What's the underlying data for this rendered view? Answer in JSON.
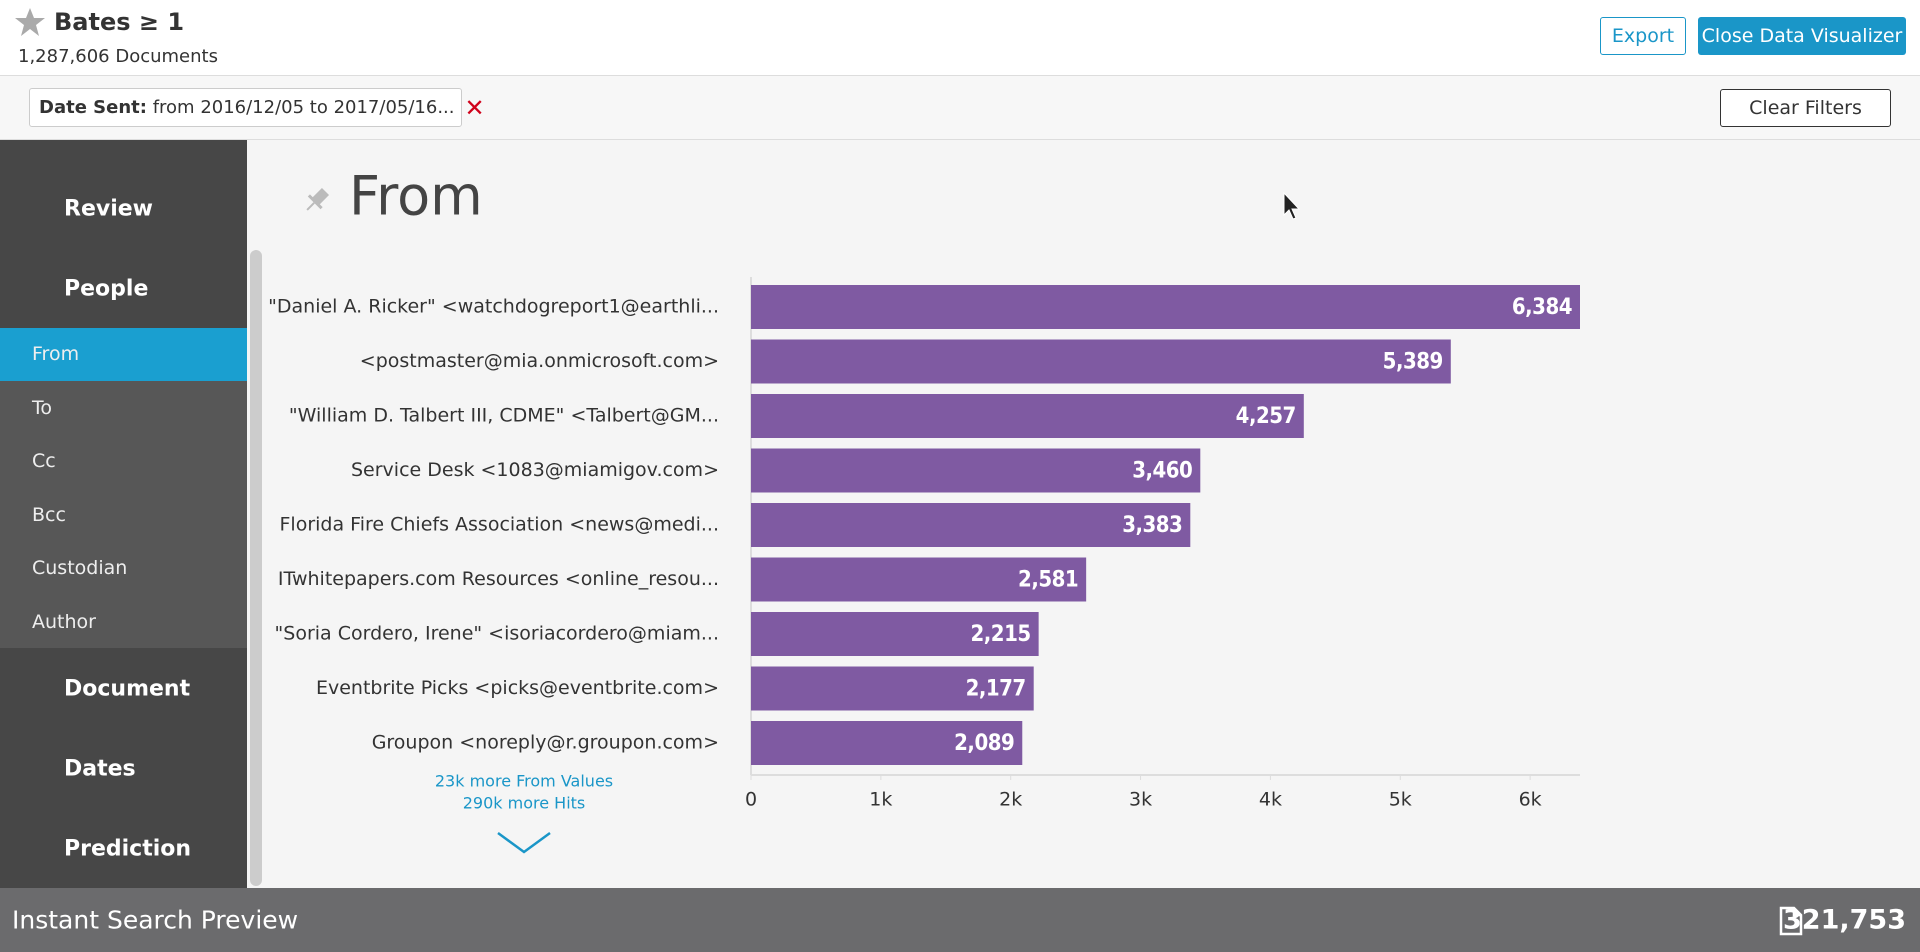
{
  "header": {
    "title": "Bates ≥ 1",
    "subtitle": "1,287,606 Documents",
    "buttons": [
      "Export",
      "Close Data Visualizer"
    ]
  },
  "filter": {
    "label": "Date Sent:",
    "value": "from 2016/12/05 to 2017/05/16...",
    "clear": "Clear Filters"
  },
  "sidebar": {
    "sections": [
      "Review",
      "People",
      "Document",
      "Dates",
      "Prediction"
    ],
    "people_items": [
      "From",
      "To",
      "Cc",
      "Bcc",
      "Custodian",
      "Author"
    ]
  },
  "chart_data": {
    "type": "hbar",
    "title": "From",
    "color": "#7f5aa2",
    "categories": [
      "\"Daniel A. Ricker\" <watchdogreport1@earthli...",
      "<postmaster@mia.onmicrosoft.com>",
      "\"William D. Talbert III, CDME\" <Talbert@GM...",
      "Service Desk <1083@miamigov.com>",
      "Florida Fire Chiefs Association <news@medi...",
      "ITwhitepapers.com Resources <online_resou...",
      "\"Soria Cordero, Irene\" <isoriacordero@miam...",
      "Eventbrite Picks <picks@eventbrite.com>",
      "Groupon <noreply@r.groupon.com>"
    ],
    "values": [
      6384,
      5389,
      4257,
      3460,
      3383,
      2581,
      2215,
      2177,
      2089
    ],
    "value_labels": [
      "6,384",
      "5,389",
      "4,257",
      "3,460",
      "3,383",
      "2,581",
      "2,215",
      "2,177",
      "2,089"
    ],
    "xlim": [
      0,
      6384
    ],
    "xticks": [
      0,
      {
        "value": 1000,
        "label": "1k"
      },
      {
        "value": 2000,
        "label": "2k"
      },
      {
        "value": 3000,
        "label": "3k"
      },
      {
        "value": 4000,
        "label": "4k"
      },
      {
        "value": 5000,
        "label": "5k"
      },
      {
        "value": 6000,
        "label": "6k"
      }
    ]
  },
  "more": [
    "23k more From Values",
    "290k more Hits"
  ],
  "footer": {
    "title": "Instant Search Preview",
    "count": "321,753"
  }
}
